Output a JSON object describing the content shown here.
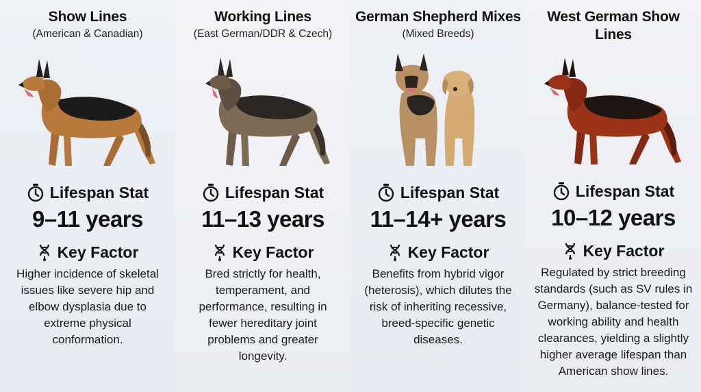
{
  "labels": {
    "lifespan_stat": "Lifespan Stat",
    "key_factor": "Key Factor"
  },
  "columns": [
    {
      "title": "Show Lines",
      "subtitle": "(American & Canadian)",
      "lifespan": "9–11 years",
      "key_factor_text": "Higher incidence of skeletal issues like severe hip and elbow dysplasia due to extreme physical conformation.",
      "dog_color": "#b77a3c",
      "saddle_color": "#1c1b1c"
    },
    {
      "title": "Working Lines",
      "subtitle": "(East German/DDR & Czech)",
      "lifespan": "11–13 years",
      "key_factor_text": "Bred strictly for health, temperament, and performance, resulting in fewer hereditary joint problems and greater longevity.",
      "dog_color": "#7c6a55",
      "saddle_color": "#2b2723"
    },
    {
      "title": "German Shepherd Mixes",
      "subtitle": "(Mixed Breeds)",
      "lifespan": "11–14+ years",
      "key_factor_text": "Benefits from hybrid vigor (heterosis), which dilutes the risk of inheriting recessive, breed-specific genetic diseases.",
      "dog_color": "#b89064",
      "saddle_color": "#2a2420",
      "companion_color": "#d3aa72"
    },
    {
      "title": "West German Show Lines",
      "subtitle": "",
      "lifespan": "10–12 years",
      "key_factor_text": "Regulated by strict breeding standards (such as SV rules in Germany), balance-tested for working ability and health clearances, yielding a slightly higher average lifespan than American show lines.",
      "dog_color": "#9c3216",
      "saddle_color": "#1e1512"
    }
  ]
}
